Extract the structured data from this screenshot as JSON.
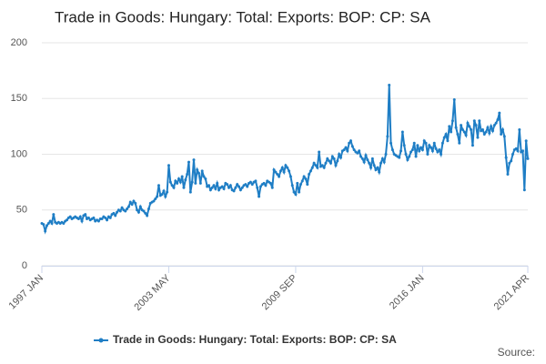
{
  "chart_data": {
    "type": "line",
    "title": "Trade in Goods: Hungary: Total: Exports: BOP: CP: SA",
    "source": "Source:",
    "categories": [
      "1997 JAN",
      null,
      null,
      null,
      null,
      null,
      null,
      null,
      null,
      null,
      null,
      null,
      null,
      null,
      null,
      null,
      null,
      null,
      null,
      null,
      null,
      null,
      null,
      null,
      null,
      null,
      null,
      null,
      null,
      null,
      null,
      null,
      null,
      null,
      null,
      null,
      null,
      null,
      null,
      null,
      null,
      null,
      null,
      null,
      null,
      null,
      null,
      null,
      null,
      null,
      null,
      null,
      null,
      null,
      null,
      null,
      null,
      null,
      null,
      null,
      null,
      null,
      null,
      null,
      null,
      null,
      null,
      null,
      null,
      null,
      null,
      null,
      null,
      null,
      null,
      null,
      "2003 MAY",
      null,
      null,
      null,
      null,
      null,
      null,
      null,
      null,
      null,
      null,
      null,
      null,
      null,
      null,
      null,
      null,
      null,
      null,
      null,
      null,
      null,
      null,
      null,
      null,
      null,
      null,
      null,
      null,
      null,
      null,
      null,
      null,
      null,
      null,
      null,
      null,
      null,
      null,
      null,
      null,
      null,
      null,
      null,
      null,
      null,
      null,
      null,
      null,
      null,
      null,
      null,
      null,
      null,
      null,
      null,
      null,
      null,
      null,
      null,
      null,
      null,
      null,
      null,
      null,
      null,
      null,
      null,
      null,
      null,
      null,
      null,
      null,
      null,
      null,
      null,
      "2009 SEP",
      null,
      null,
      null,
      null,
      null,
      null,
      null,
      null,
      null,
      null,
      null,
      null,
      null,
      null,
      null,
      null,
      null,
      null,
      null,
      null,
      null,
      null,
      null,
      null,
      null,
      null,
      null,
      null,
      null,
      null,
      null,
      null,
      null,
      null,
      null,
      null,
      null,
      null,
      null,
      null,
      null,
      null,
      null,
      null,
      null,
      null,
      null,
      null,
      null,
      null,
      null,
      null,
      null,
      null,
      null,
      null,
      null,
      null,
      null,
      null,
      null,
      null,
      null,
      null,
      null,
      null,
      null,
      null,
      null,
      null,
      null,
      null,
      null,
      null,
      null,
      "2016 JAN",
      null,
      null,
      null,
      null,
      null,
      null,
      null,
      null,
      null,
      null,
      null,
      null,
      null,
      null,
      null,
      null,
      null,
      null,
      null,
      null,
      null,
      null,
      null,
      null,
      null,
      null,
      null,
      null,
      null,
      null,
      null,
      null,
      null,
      null,
      null,
      null,
      null,
      null,
      null,
      null,
      null,
      null,
      null,
      null,
      null,
      null,
      null,
      null,
      null,
      null,
      null,
      null,
      null,
      null,
      null,
      null,
      null,
      null,
      null,
      null,
      null,
      null,
      "2021 APR"
    ],
    "series": [
      {
        "name": "Trade in Goods: Hungary: Total: Exports: BOP: CP: SA",
        "color": "#1f7ec5",
        "values": [
          38,
          37,
          31,
          36,
          38,
          40,
          38,
          46,
          39,
          38,
          39,
          38,
          39,
          38,
          40,
          41,
          43,
          44,
          42,
          43,
          44,
          43,
          42,
          44,
          40,
          45,
          46,
          42,
          43,
          41,
          42,
          43,
          40,
          41,
          40,
          42,
          42,
          44,
          43,
          41,
          44,
          43,
          46,
          47,
          45,
          48,
          50,
          49,
          52,
          50,
          49,
          51,
          53,
          57,
          55,
          58,
          56,
          50,
          48,
          53,
          50,
          49,
          47,
          45,
          51,
          56,
          57,
          58,
          60,
          62,
          72,
          63,
          64,
          67,
          62,
          66,
          90,
          75,
          72,
          70,
          76,
          74,
          78,
          75,
          80,
          70,
          77,
          82,
          93,
          66,
          75,
          95,
          74,
          86,
          83,
          74,
          85,
          80,
          78,
          71,
          72,
          68,
          70,
          72,
          69,
          74,
          68,
          70,
          71,
          69,
          74,
          73,
          70,
          72,
          68,
          67,
          70,
          73,
          71,
          68,
          70,
          72,
          73,
          71,
          74,
          75,
          73,
          75,
          76,
          70,
          62,
          71,
          73,
          74,
          72,
          76,
          75,
          74,
          70,
          86,
          84,
          82,
          80,
          85,
          88,
          84,
          90,
          88,
          85,
          80,
          72,
          66,
          64,
          74,
          66,
          73,
          76,
          80,
          78,
          73,
          82,
          85,
          88,
          92,
          90,
          88,
          102,
          89,
          90,
          88,
          92,
          96,
          94,
          92,
          98,
          96,
          90,
          94,
          100,
          97,
          103,
          104,
          106,
          103,
          110,
          112,
          107,
          104,
          102,
          101,
          103,
          98,
          96,
          93,
          99,
          95,
          92,
          88,
          96,
          90,
          86,
          88,
          84,
          92,
          96,
          93,
          100,
          116,
          162,
          110,
          104,
          100,
          99,
          98,
          97,
          103,
          120,
          108,
          100,
          95,
          98,
          102,
          104,
          110,
          98,
          108,
          103,
          106,
          104,
          112,
          110,
          100,
          108,
          106,
          103,
          110,
          105,
          102,
          104,
          100,
          110,
          115,
          118,
          112,
          125,
          120,
          130,
          149,
          124,
          118,
          110,
          126,
          122,
          120,
          117,
          128,
          125,
          122,
          108,
          130,
          126,
          115,
          130,
          121,
          122,
          118,
          120,
          124,
          119,
          125,
          121,
          126,
          128,
          131,
          137,
          118,
          122,
          116,
          97,
          82,
          92,
          94,
          100,
          104,
          105,
          103,
          122,
          102,
          103,
          68,
          112,
          96
        ]
      }
    ],
    "ylim": [
      0,
      200
    ],
    "yticks": [
      0,
      50,
      100,
      150,
      200
    ],
    "grid": true
  }
}
